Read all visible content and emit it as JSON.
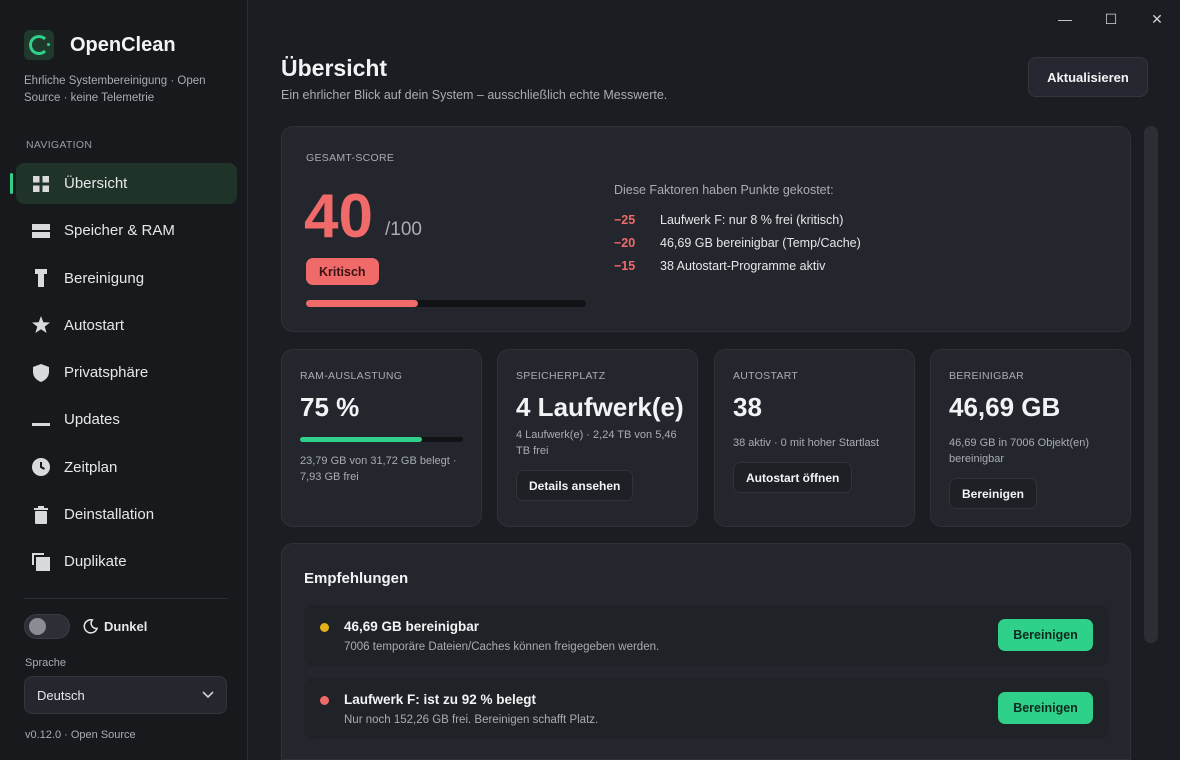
{
  "app": {
    "name": "OpenClean",
    "tagline": "Ehrliche Systembereinigung · Open Source · keine Telemetrie",
    "version": "v0.12.0 · Open Source"
  },
  "window_controls": {
    "minimize": "—",
    "maximize": "☐",
    "close": "✕"
  },
  "sidebar": {
    "heading": "NAVIGATION",
    "items": [
      {
        "label": "Übersicht",
        "icon": "grid-icon",
        "active": true
      },
      {
        "label": "Speicher & RAM",
        "icon": "storage-icon"
      },
      {
        "label": "Bereinigung",
        "icon": "broom-icon"
      },
      {
        "label": "Autostart",
        "icon": "star-icon"
      },
      {
        "label": "Privatsphäre",
        "icon": "shield-icon"
      },
      {
        "label": "Updates",
        "icon": "minus-icon"
      },
      {
        "label": "Zeitplan",
        "icon": "clock-icon"
      },
      {
        "label": "Deinstallation",
        "icon": "trash-icon"
      },
      {
        "label": "Duplikate",
        "icon": "copy-icon"
      }
    ],
    "theme_label": "Dunkel",
    "language_label": "Sprache",
    "language_value": "Deutsch"
  },
  "header": {
    "title": "Übersicht",
    "subtitle": "Ein ehrlicher Blick auf dein System – ausschließlich echte Messwerte.",
    "refresh_label": "Aktualisieren"
  },
  "score": {
    "label": "GESAMT-SCORE",
    "value": "40",
    "max": "/100",
    "fraction": 0.4,
    "badge": "Kritisch",
    "factors_title": "Diese Faktoren haben Punkte gekostet:",
    "factors": [
      {
        "points": "−25",
        "text": "Laufwerk F: nur 8 % frei (kritisch)"
      },
      {
        "points": "−20",
        "text": "46,69 GB bereinigbar (Temp/Cache)"
      },
      {
        "points": "−15",
        "text": "38 Autostart-Programme aktiv"
      }
    ]
  },
  "stats": {
    "ram": {
      "label": "RAM-AUSLASTUNG",
      "value": "75 %",
      "fraction": 0.75,
      "detail": "23,79 GB von 31,72 GB belegt · 7,93 GB frei"
    },
    "storage": {
      "label": "SPEICHERPLATZ",
      "value": "4 Laufwerk(e)",
      "detail": "4 Laufwerk(e) · 2,24 TB von 5,46 TB frei",
      "button": "Details ansehen"
    },
    "autostart": {
      "label": "AUTOSTART",
      "value": "38",
      "detail": "38 aktiv · 0 mit hoher Startlast",
      "button": "Autostart öffnen"
    },
    "cleanable": {
      "label": "BEREINIGBAR",
      "value": "46,69 GB",
      "detail": "46,69 GB in 7006 Objekt(en) bereinigbar",
      "button": "Bereinigen"
    }
  },
  "recommendations": {
    "title": "Empfehlungen",
    "items": [
      {
        "title": "46,69 GB bereinigbar",
        "desc": "7006 temporäre Dateien/Caches können freigegeben werden.",
        "button": "Bereinigen",
        "severity_color": "#e6b118"
      },
      {
        "title": "Laufwerk F: ist zu 92 % belegt",
        "desc": "Nur noch 152,26 GB frei. Bereinigen schafft Platz.",
        "button": "Bereinigen",
        "severity_color": "#f06a6a"
      }
    ]
  },
  "colors": {
    "accent": "#2fd08a",
    "critical": "#f06a6a",
    "warning": "#e6b118"
  }
}
